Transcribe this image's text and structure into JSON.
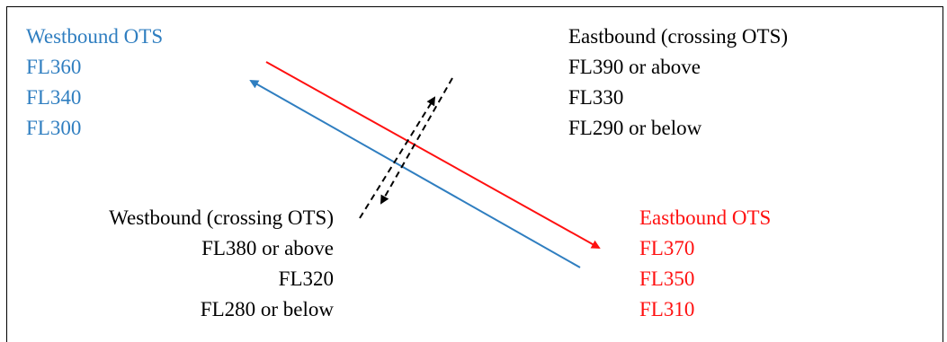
{
  "westbound_ots": {
    "title": "Westbound OTS",
    "levels": [
      "FL360",
      "FL340",
      "FL300"
    ],
    "color": "#2f7ec0"
  },
  "eastbound_crossing": {
    "title": "Eastbound (crossing OTS)",
    "levels": [
      "FL390 or above",
      "FL330",
      "FL290 or below"
    ],
    "color": "#000000"
  },
  "westbound_crossing": {
    "title": "Westbound (crossing OTS)",
    "levels": [
      "FL380 or above",
      "FL320",
      "FL280 or below"
    ],
    "color": "#000000"
  },
  "eastbound_ots": {
    "title": "Eastbound OTS",
    "levels": [
      "FL370",
      "FL350",
      "FL310"
    ],
    "color": "#ff1010"
  },
  "arrows": {
    "eastbound_ots_color": "#ff1010",
    "westbound_ots_color": "#2f7ec0",
    "crossing_color": "#000000"
  }
}
